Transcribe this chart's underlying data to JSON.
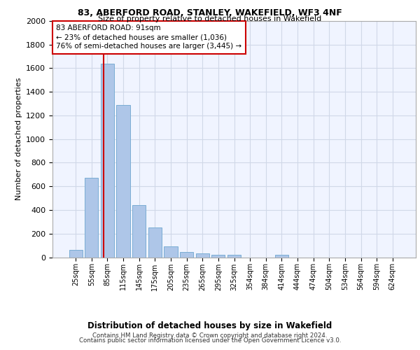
{
  "title_line1": "83, ABERFORD ROAD, STANLEY, WAKEFIELD, WF3 4NF",
  "title_line2": "Size of property relative to detached houses in Wakefield",
  "xlabel": "Distribution of detached houses by size in Wakefield",
  "ylabel": "Number of detached properties",
  "categories": [
    "25sqm",
    "55sqm",
    "85sqm",
    "115sqm",
    "145sqm",
    "175sqm",
    "205sqm",
    "235sqm",
    "265sqm",
    "295sqm",
    "325sqm",
    "354sqm",
    "384sqm",
    "414sqm",
    "444sqm",
    "474sqm",
    "504sqm",
    "534sqm",
    "564sqm",
    "594sqm",
    "624sqm"
  ],
  "values": [
    65,
    670,
    1640,
    1290,
    440,
    250,
    90,
    45,
    30,
    22,
    18,
    0,
    0,
    22,
    0,
    0,
    0,
    0,
    0,
    0,
    0
  ],
  "bar_color": "#aec6e8",
  "bar_edge_color": "#7aadd4",
  "property_label": "83 ABERFORD ROAD: 91sqm",
  "annotation_line2": "← 23% of detached houses are smaller (1,036)",
  "annotation_line3": "76% of semi-detached houses are larger (3,445) →",
  "vline_color": "#cc0000",
  "annotation_box_edge_color": "#cc0000",
  "ylim": [
    0,
    2000
  ],
  "yticks": [
    0,
    200,
    400,
    600,
    800,
    1000,
    1200,
    1400,
    1600,
    1800,
    2000
  ],
  "grid_color": "#d0d8e8",
  "bg_color": "#f0f4ff",
  "footer_line1": "Contains HM Land Registry data © Crown copyright and database right 2024.",
  "footer_line2": "Contains public sector information licensed under the Open Government Licence v3.0."
}
